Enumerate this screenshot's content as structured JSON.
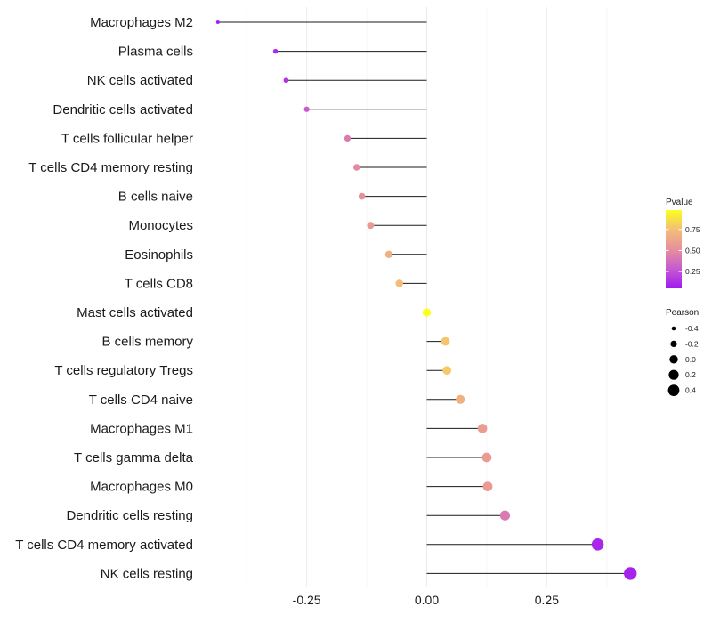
{
  "chart_data": {
    "type": "lollipop",
    "title": "",
    "xlabel": "",
    "ylabel": "",
    "xlim": [
      -0.435,
      0.445
    ],
    "xticks": [
      -0.25,
      0.0,
      0.25
    ],
    "xtick_labels": [
      "-0.25",
      "0.00",
      "0.25"
    ],
    "grid": "vertical",
    "categories": [
      "Macrophages M2",
      "Plasma cells",
      "NK cells activated",
      "Dendritic cells activated",
      "T cells follicular helper",
      "T cells CD4 memory resting",
      "B cells naive",
      "Monocytes",
      "Eosinophils",
      "T cells CD8",
      "Mast cells activated",
      "B cells memory",
      "T cells regulatory  Tregs ",
      "T cells CD4 naive",
      "Macrophages M1",
      "T cells gamma delta",
      "Macrophages M0",
      "Dendritic cells resting",
      "T cells CD4 memory activated",
      "NK cells resting"
    ],
    "pearson": [
      -0.435,
      -0.315,
      -0.293,
      -0.25,
      -0.165,
      -0.146,
      -0.135,
      -0.117,
      -0.079,
      -0.057,
      0.0,
      0.039,
      0.042,
      0.07,
      0.116,
      0.125,
      0.127,
      0.163,
      0.356,
      0.424
    ],
    "pvalue": [
      0.08,
      0.12,
      0.15,
      0.3,
      0.45,
      0.52,
      0.55,
      0.6,
      0.72,
      0.78,
      0.98,
      0.8,
      0.82,
      0.72,
      0.62,
      0.6,
      0.6,
      0.45,
      0.1,
      0.08
    ],
    "color_legend": {
      "title": "Pvalue",
      "ticks": [
        "0.25",
        "0.50",
        "0.75"
      ],
      "range": [
        0.05,
        0.98
      ],
      "colors": [
        "#a01bef",
        "#d86fb8",
        "#efa07a",
        "#f5c76a",
        "#fbff1c"
      ],
      "placement": "right"
    },
    "size_legend": {
      "title": "Pearson",
      "labels": [
        "-0.4",
        "-0.2",
        "0.0",
        "0.2",
        "0.4"
      ],
      "values": [
        -0.4,
        -0.2,
        0.0,
        0.2,
        0.4
      ],
      "placement": "right"
    }
  }
}
